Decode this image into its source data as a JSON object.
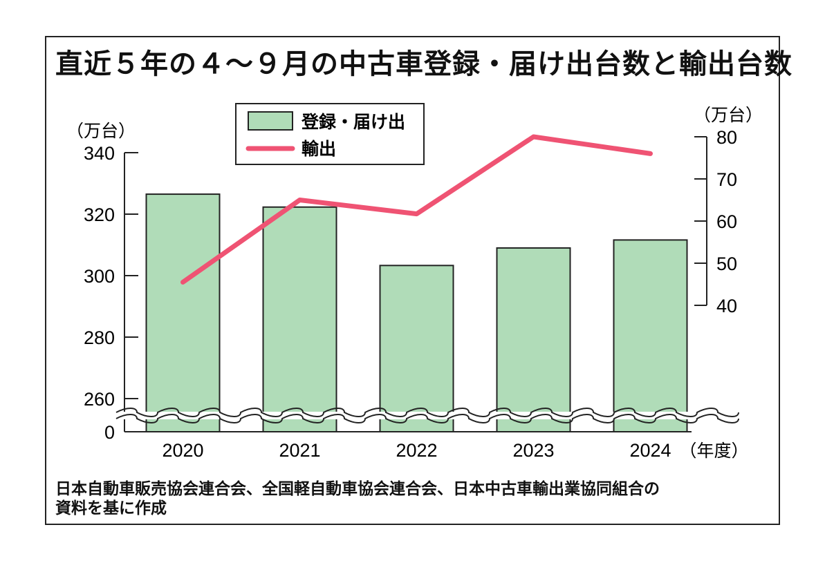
{
  "title": "直近５年の４～９月の中古車登録・届け出台数と輸出台数",
  "source_line1": "日本自動車販売協会連合会、全国軽自動車協会連合会、日本中古車輸出業協同組合の",
  "source_line2": "資料を基に作成",
  "chart_data": {
    "type": "bar+line",
    "categories": [
      "2020",
      "2021",
      "2022",
      "2023",
      "2024"
    ],
    "x_suffix": "（年度）",
    "series": [
      {
        "name": "登録・届け出",
        "type": "bar",
        "axis": "left",
        "color": "#b0dcb8",
        "values": [
          326.5,
          322.3,
          303.3,
          309,
          311.6
        ]
      },
      {
        "name": "輸出",
        "type": "line",
        "axis": "right",
        "color": "#ef5373",
        "values": [
          45.5,
          65,
          61.7,
          80,
          76
        ]
      }
    ],
    "y_left": {
      "unit": "（万台）",
      "ticks": [
        "340",
        "320",
        "300",
        "280",
        "260",
        "0"
      ],
      "range": [
        250,
        340
      ],
      "axis_break": true
    },
    "y_right": {
      "unit": "（万台）",
      "ticks": [
        "80",
        "70",
        "60",
        "50",
        "40"
      ],
      "range": [
        40,
        80
      ]
    },
    "legend_position": "top-center"
  }
}
